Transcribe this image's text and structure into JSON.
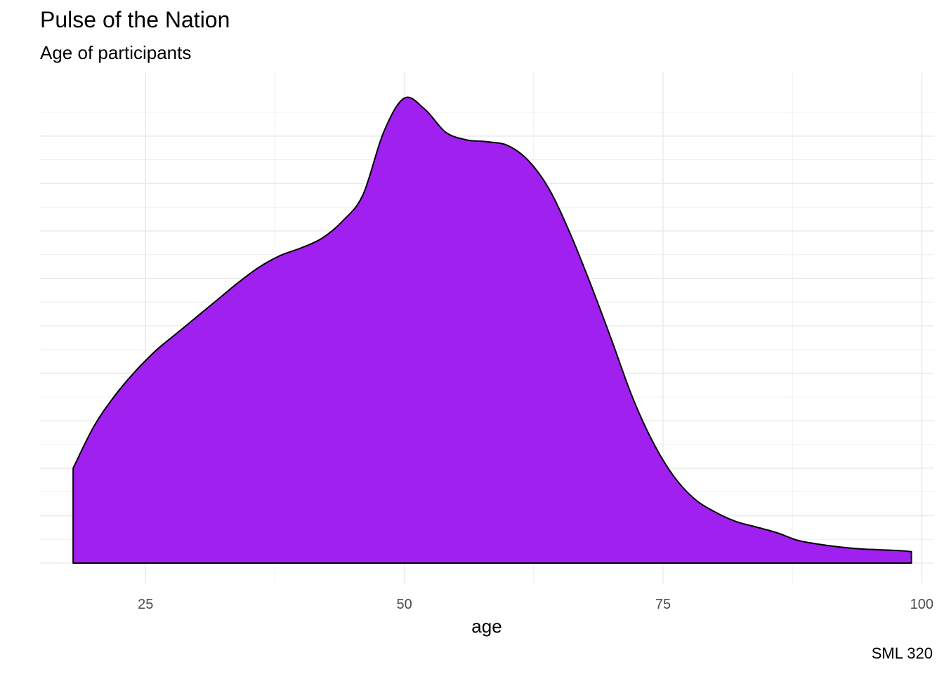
{
  "title": "Pulse of the Nation",
  "subtitle": "Age of participants",
  "caption": "SML 320",
  "chart_data": {
    "type": "area",
    "title": "Pulse of the Nation",
    "subtitle": "Age of participants",
    "xlabel": "age",
    "ylabel": "",
    "xlim": [
      14.8,
      101.2
    ],
    "ylim": [
      0,
      0.0246
    ],
    "x_ticks": [
      25,
      50,
      75,
      100
    ],
    "x_tick_labels": [
      "25",
      "50",
      "75",
      "100"
    ],
    "y_ticks_shown": false,
    "grid": true,
    "legend": "none",
    "fill_color": "#a020f0",
    "outline_color": "#000000",
    "x": [
      18,
      20,
      22,
      24,
      26,
      28,
      30,
      32,
      34,
      36,
      38,
      40,
      42,
      44,
      46,
      48,
      50,
      52,
      54,
      56,
      58,
      60,
      62,
      64,
      66,
      68,
      70,
      72,
      74,
      76,
      78,
      80,
      82,
      84,
      86,
      88,
      90,
      92,
      94,
      96,
      98,
      99
    ],
    "y": [
      0.005,
      0.0072,
      0.0088,
      0.0101,
      0.0112,
      0.0121,
      0.013,
      0.0139,
      0.0148,
      0.0156,
      0.0162,
      0.0166,
      0.0171,
      0.018,
      0.0194,
      0.0227,
      0.0245,
      0.0239,
      0.0227,
      0.0223,
      0.0222,
      0.022,
      0.0212,
      0.0197,
      0.0174,
      0.0147,
      0.0118,
      0.0088,
      0.0064,
      0.0046,
      0.0034,
      0.0027,
      0.0022,
      0.0019,
      0.0016,
      0.0012,
      0.001,
      0.00085,
      0.00075,
      0.0007,
      0.00065,
      0.0006
    ]
  }
}
